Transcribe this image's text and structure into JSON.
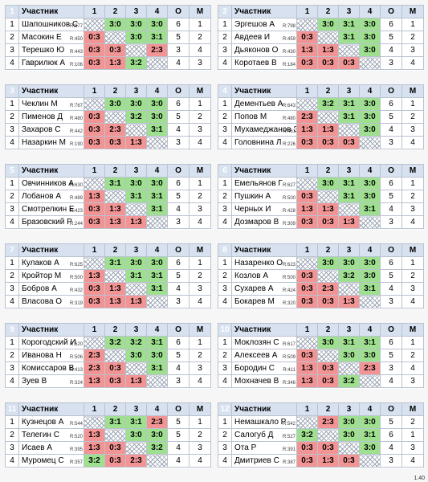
{
  "header": {
    "participant": "Участник",
    "c1": "1",
    "c2": "2",
    "c3": "3",
    "c4": "4",
    "o": "О",
    "m": "М"
  },
  "version": "1.40",
  "groups": [
    {
      "num": "1",
      "players": [
        {
          "n": "1",
          "name": "Шапошников С",
          "rating": "R:877",
          "cells": [
            "X",
            "3:0",
            "3:0",
            "3:0"
          ],
          "o": "6",
          "m": "1"
        },
        {
          "n": "2",
          "name": "Масокин Е",
          "rating": "R:450",
          "cells": [
            "0:3",
            "X",
            "3:0",
            "3:1"
          ],
          "o": "5",
          "m": "2"
        },
        {
          "n": "3",
          "name": "Терешко Ю",
          "rating": "R:443",
          "cells": [
            "0:3",
            "0:3",
            "X",
            "2:3"
          ],
          "o": "3",
          "m": "4"
        },
        {
          "n": "4",
          "name": "Гаврилюк А",
          "rating": "R:106",
          "cells": [
            "0:3",
            "1:3",
            "3:2",
            "X"
          ],
          "o": "4",
          "m": "3"
        }
      ]
    },
    {
      "num": "2",
      "players": [
        {
          "n": "1",
          "name": "Эргешов А",
          "rating": "R:798",
          "cells": [
            "X",
            "3:0",
            "3:1",
            "3:0"
          ],
          "o": "6",
          "m": "1"
        },
        {
          "n": "2",
          "name": "Авдеев И",
          "rating": "R:459",
          "cells": [
            "0:3",
            "X",
            "3:1",
            "3:0"
          ],
          "o": "5",
          "m": "2"
        },
        {
          "n": "3",
          "name": "Дьяконов О",
          "rating": "R:430",
          "cells": [
            "1:3",
            "1:3",
            "X",
            "3:0"
          ],
          "o": "4",
          "m": "3"
        },
        {
          "n": "4",
          "name": "Коротаев В",
          "rating": "R:184",
          "cells": [
            "0:3",
            "0:3",
            "0:3",
            "X"
          ],
          "o": "3",
          "m": "4"
        }
      ]
    },
    {
      "num": "3",
      "players": [
        {
          "n": "1",
          "name": "Чеклин М",
          "rating": "R:767",
          "cells": [
            "X",
            "3:0",
            "3:0",
            "3:0"
          ],
          "o": "6",
          "m": "1"
        },
        {
          "n": "2",
          "name": "Пименов Д",
          "rating": "R:480",
          "cells": [
            "0:3",
            "X",
            "3:2",
            "3:0"
          ],
          "o": "5",
          "m": "2"
        },
        {
          "n": "3",
          "name": "Захаров С",
          "rating": "R:442",
          "cells": [
            "0:3",
            "2:3",
            "X",
            "3:1"
          ],
          "o": "4",
          "m": "3"
        },
        {
          "n": "4",
          "name": "Назаркин М",
          "rating": "R:190",
          "cells": [
            "0:3",
            "0:3",
            "1:3",
            "X"
          ],
          "o": "3",
          "m": "4"
        }
      ]
    },
    {
      "num": "4",
      "players": [
        {
          "n": "1",
          "name": "Дементьев А",
          "rating": "R:643",
          "cells": [
            "X",
            "3:2",
            "3:1",
            "3:0"
          ],
          "o": "6",
          "m": "1"
        },
        {
          "n": "2",
          "name": "Попов М",
          "rating": "R:480",
          "cells": [
            "2:3",
            "X",
            "3:1",
            "3:0"
          ],
          "o": "5",
          "m": "2"
        },
        {
          "n": "3",
          "name": "Мухамеджанов Э",
          "rating": "R:461",
          "cells": [
            "1:3",
            "1:3",
            "X",
            "3:0"
          ],
          "o": "4",
          "m": "3"
        },
        {
          "n": "4",
          "name": "Головнина Л",
          "rating": "R:226",
          "cells": [
            "0:3",
            "0:3",
            "0:3",
            "X"
          ],
          "o": "3",
          "m": "4"
        }
      ]
    },
    {
      "num": "5",
      "players": [
        {
          "n": "1",
          "name": "Овчинников А",
          "rating": "R:630",
          "cells": [
            "X",
            "3:1",
            "3:0",
            "3:0"
          ],
          "o": "6",
          "m": "1"
        },
        {
          "n": "2",
          "name": "Лобанов А",
          "rating": "R:489",
          "cells": [
            "1:3",
            "X",
            "3:1",
            "3:1"
          ],
          "o": "5",
          "m": "2"
        },
        {
          "n": "3",
          "name": "Смотрелкин Е",
          "rating": "R:423",
          "cells": [
            "0:3",
            "1:3",
            "X",
            "3:1"
          ],
          "o": "4",
          "m": "3"
        },
        {
          "n": "4",
          "name": "Бразовский Р",
          "rating": "R:244",
          "cells": [
            "0:3",
            "1:3",
            "1:3",
            "X"
          ],
          "o": "3",
          "m": "4"
        }
      ]
    },
    {
      "num": "6",
      "players": [
        {
          "n": "1",
          "name": "Емельянов Г",
          "rating": "R:627",
          "cells": [
            "X",
            "3:0",
            "3:1",
            "3:0"
          ],
          "o": "6",
          "m": "1"
        },
        {
          "n": "2",
          "name": "Пушкин А",
          "rating": "R:500",
          "cells": [
            "0:3",
            "X",
            "3:1",
            "3:0"
          ],
          "o": "5",
          "m": "2"
        },
        {
          "n": "3",
          "name": "Черных И",
          "rating": "R:428",
          "cells": [
            "1:3",
            "1:3",
            "X",
            "3:1"
          ],
          "o": "4",
          "m": "3"
        },
        {
          "n": "4",
          "name": "Дозмаров В",
          "rating": "R:309",
          "cells": [
            "0:3",
            "0:3",
            "1:3",
            "X"
          ],
          "o": "3",
          "m": "4"
        }
      ]
    },
    {
      "num": "7",
      "players": [
        {
          "n": "1",
          "name": "Кулаков А",
          "rating": "R:625",
          "cells": [
            "X",
            "3:1",
            "3:0",
            "3:0"
          ],
          "o": "6",
          "m": "1"
        },
        {
          "n": "2",
          "name": "Кройтор М",
          "rating": "R:500",
          "cells": [
            "1:3",
            "X",
            "3:1",
            "3:1"
          ],
          "o": "5",
          "m": "2"
        },
        {
          "n": "3",
          "name": "Бобров А",
          "rating": "R:432",
          "cells": [
            "0:3",
            "1:3",
            "X",
            "3:1"
          ],
          "o": "4",
          "m": "3"
        },
        {
          "n": "4",
          "name": "Власова О",
          "rating": "R:319",
          "cells": [
            "0:3",
            "1:3",
            "1:3",
            "X"
          ],
          "o": "3",
          "m": "4"
        }
      ]
    },
    {
      "num": "8",
      "players": [
        {
          "n": "1",
          "name": "Назаренко О",
          "rating": "R:623",
          "cells": [
            "X",
            "3:0",
            "3:0",
            "3:0"
          ],
          "o": "6",
          "m": "1"
        },
        {
          "n": "2",
          "name": "Козлов А",
          "rating": "R:500",
          "cells": [
            "0:3",
            "X",
            "3:2",
            "3:0"
          ],
          "o": "5",
          "m": "2"
        },
        {
          "n": "3",
          "name": "Сухарев А",
          "rating": "R:424",
          "cells": [
            "0:3",
            "2:3",
            "X",
            "3:1"
          ],
          "o": "4",
          "m": "3"
        },
        {
          "n": "4",
          "name": "Бокарев М",
          "rating": "R:320",
          "cells": [
            "0:3",
            "0:3",
            "1:3",
            "X"
          ],
          "o": "3",
          "m": "4"
        }
      ]
    },
    {
      "num": "9",
      "players": [
        {
          "n": "1",
          "name": "Корогодский И",
          "rating": "R:620",
          "cells": [
            "X",
            "3:2",
            "3:2",
            "3:1"
          ],
          "o": "6",
          "m": "1"
        },
        {
          "n": "2",
          "name": "Иванова Н",
          "rating": "R:506",
          "cells": [
            "2:3",
            "X",
            "3:0",
            "3:0"
          ],
          "o": "5",
          "m": "2"
        },
        {
          "n": "3",
          "name": "Комиссаров В",
          "rating": "R:413",
          "cells": [
            "2:3",
            "0:3",
            "X",
            "3:1"
          ],
          "o": "4",
          "m": "3"
        },
        {
          "n": "4",
          "name": "Зуев В",
          "rating": "R:324",
          "cells": [
            "1:3",
            "0:3",
            "1:3",
            "X"
          ],
          "o": "3",
          "m": "4"
        }
      ]
    },
    {
      "num": "10",
      "players": [
        {
          "n": "1",
          "name": "Моклозян С",
          "rating": "R:617",
          "cells": [
            "X",
            "3:0",
            "3:1",
            "3:1"
          ],
          "o": "6",
          "m": "1"
        },
        {
          "n": "2",
          "name": "Алексеев А",
          "rating": "R:509",
          "cells": [
            "0:3",
            "X",
            "3:0",
            "3:0"
          ],
          "o": "5",
          "m": "2"
        },
        {
          "n": "3",
          "name": "Бородин С",
          "rating": "R:411",
          "cells": [
            "1:3",
            "0:3",
            "X",
            "2:3"
          ],
          "o": "3",
          "m": "4"
        },
        {
          "n": "4",
          "name": "Мохначев В",
          "rating": "R:346",
          "cells": [
            "1:3",
            "0:3",
            "3:2",
            "X"
          ],
          "o": "4",
          "m": "3"
        }
      ]
    },
    {
      "num": "11",
      "players": [
        {
          "n": "1",
          "name": "Кузнецов А",
          "rating": "R:544",
          "cells": [
            "X",
            "3:1",
            "3:1",
            "2:3"
          ],
          "o": "5",
          "m": "1"
        },
        {
          "n": "2",
          "name": "Телегин С",
          "rating": "R:520",
          "cells": [
            "1:3",
            "X",
            "3:0",
            "3:0"
          ],
          "o": "5",
          "m": "2"
        },
        {
          "n": "3",
          "name": "Исаев А",
          "rating": "R:395",
          "cells": [
            "1:3",
            "0:3",
            "X",
            "3:2"
          ],
          "o": "4",
          "m": "3"
        },
        {
          "n": "4",
          "name": "Муромец С",
          "rating": "R:357",
          "cells": [
            "3:2",
            "0:3",
            "2:3",
            "X"
          ],
          "o": "4",
          "m": "4"
        }
      ]
    },
    {
      "num": "12",
      "players": [
        {
          "n": "1",
          "name": "Немашкало Р",
          "rating": "R:542",
          "cells": [
            "X",
            "2:3",
            "3:0",
            "3:0"
          ],
          "o": "5",
          "m": "2"
        },
        {
          "n": "2",
          "name": "Салогуб Д",
          "rating": "R:527",
          "cells": [
            "3:2",
            "X",
            "3:0",
            "3:1"
          ],
          "o": "6",
          "m": "1"
        },
        {
          "n": "3",
          "name": "Ота Р",
          "rating": "R:391",
          "cells": [
            "0:3",
            "0:3",
            "X",
            "3:0"
          ],
          "o": "4",
          "m": "3"
        },
        {
          "n": "4",
          "name": "Дмитриев С",
          "rating": "R:387",
          "cells": [
            "0:3",
            "1:3",
            "0:3",
            "X"
          ],
          "o": "3",
          "m": "4"
        }
      ]
    }
  ]
}
